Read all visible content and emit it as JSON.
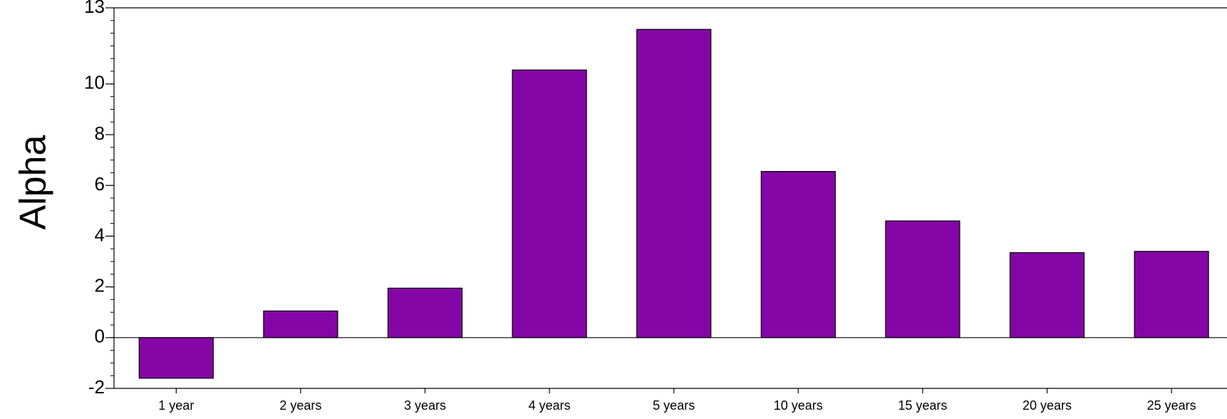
{
  "chart_data": {
    "type": "bar",
    "title": "",
    "xlabel": "",
    "ylabel": "Alpha",
    "categories": [
      "1 year",
      "2 years",
      "3 years",
      "4 years",
      "5 years",
      "10 years",
      "15 years",
      "20 years",
      "25 years"
    ],
    "values": [
      -1.6,
      1.05,
      1.95,
      10.55,
      12.15,
      6.55,
      4.6,
      3.35,
      3.4
    ],
    "ylim": [
      -2,
      13
    ],
    "yticks": [
      -2,
      0,
      2,
      4,
      6,
      8,
      10,
      13
    ],
    "ytick_labels": [
      "-2",
      "0",
      "2",
      "4",
      "6",
      "8",
      "10",
      "13"
    ],
    "grid": false,
    "legend": "none",
    "colors": {
      "bar_fill": "#8506A6",
      "bar_stroke": "#000000",
      "axis": "#000000"
    }
  }
}
